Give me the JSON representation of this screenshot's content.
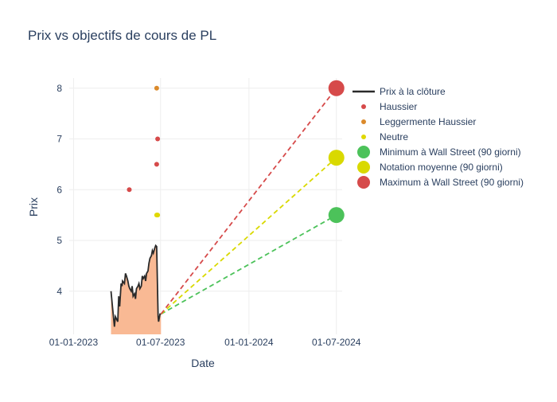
{
  "chart_data": {
    "type": "line",
    "title": "Prix vs objectifs de cours de PL",
    "xlabel": "Date",
    "ylabel": "Prix",
    "x_ticks": [
      "01-01-2023",
      "01-07-2023",
      "01-01-2024",
      "01-07-2024"
    ],
    "y_ticks": [
      4,
      5,
      6,
      7,
      8
    ],
    "xlim": [
      "2022-12-23",
      "2024-07-13"
    ],
    "ylim": [
      3.15,
      8.2
    ],
    "grid": true,
    "legend_position": "right",
    "colors": {
      "close": "#2a2a2a",
      "fill": "#f9b994",
      "haussier": "#d64a4a",
      "legerement": "#db8a2b",
      "neutre": "#e0d800",
      "minimum": "#4cc25a",
      "moyenne": "#d9d900",
      "maximum": "#d64a4a",
      "grid": "#eeeeee"
    },
    "close_series": {
      "name": "Prix à la clôture",
      "x": [
        "2023-03-20",
        "2023-03-23",
        "2023-03-27",
        "2023-03-29",
        "2023-04-03",
        "2023-04-05",
        "2023-04-07",
        "2023-04-10",
        "2023-04-12",
        "2023-04-13",
        "2023-04-17",
        "2023-04-19",
        "2023-04-21",
        "2023-04-24",
        "2023-04-26",
        "2023-04-28",
        "2023-05-01",
        "2023-05-03",
        "2023-05-05",
        "2023-05-08",
        "2023-05-10",
        "2023-05-12",
        "2023-05-15",
        "2023-05-17",
        "2023-05-19",
        "2023-05-22",
        "2023-05-24",
        "2023-05-26",
        "2023-05-29",
        "2023-05-31",
        "2023-06-02",
        "2023-06-05",
        "2023-06-07",
        "2023-06-09",
        "2023-06-12",
        "2023-06-14",
        "2023-06-16",
        "2023-06-19",
        "2023-06-21",
        "2023-06-23",
        "2023-06-26",
        "2023-06-27",
        "2023-06-28",
        "2023-06-29",
        "2023-06-30",
        "2023-07-02"
      ],
      "y": [
        4.0,
        3.7,
        3.3,
        3.5,
        3.4,
        3.9,
        3.7,
        4.15,
        4.1,
        4.2,
        4.15,
        4.35,
        4.3,
        4.2,
        4.1,
        4.05,
        4.0,
        4.1,
        3.9,
        3.95,
        3.85,
        4.05,
        4.1,
        4.15,
        4.05,
        4.1,
        4.3,
        4.25,
        4.3,
        4.2,
        4.35,
        4.4,
        4.55,
        4.65,
        4.7,
        4.8,
        4.75,
        4.85,
        4.9,
        4.88,
        3.5,
        3.4,
        3.45,
        3.5,
        3.55,
        3.55
      ]
    },
    "rating_series": [
      {
        "name": "Haussier",
        "x": [
          "2023-04-27",
          "2023-06-23",
          "2023-06-25"
        ],
        "y": [
          6.0,
          6.5,
          7.0
        ]
      },
      {
        "name": "Leggermente Haussier",
        "x": [
          "2023-06-23"
        ],
        "y": [
          8.0
        ]
      },
      {
        "name": "Neutre",
        "x": [
          "2023-06-23",
          "2023-06-25"
        ],
        "y": [
          5.5,
          5.5
        ]
      }
    ],
    "target_series": [
      {
        "name": "Minimum à Wall Street (90 giorni)",
        "x": [
          "2023-07-02",
          "2024-07-01"
        ],
        "y": [
          3.55,
          5.5
        ]
      },
      {
        "name": "Notation moyenne (90 giorni)",
        "x": [
          "2023-07-02",
          "2024-07-01"
        ],
        "y": [
          3.55,
          6.63
        ]
      },
      {
        "name": "Maximum à Wall Street (90 giorni)",
        "x": [
          "2023-07-02",
          "2024-07-01"
        ],
        "y": [
          3.55,
          8.0
        ]
      }
    ]
  }
}
